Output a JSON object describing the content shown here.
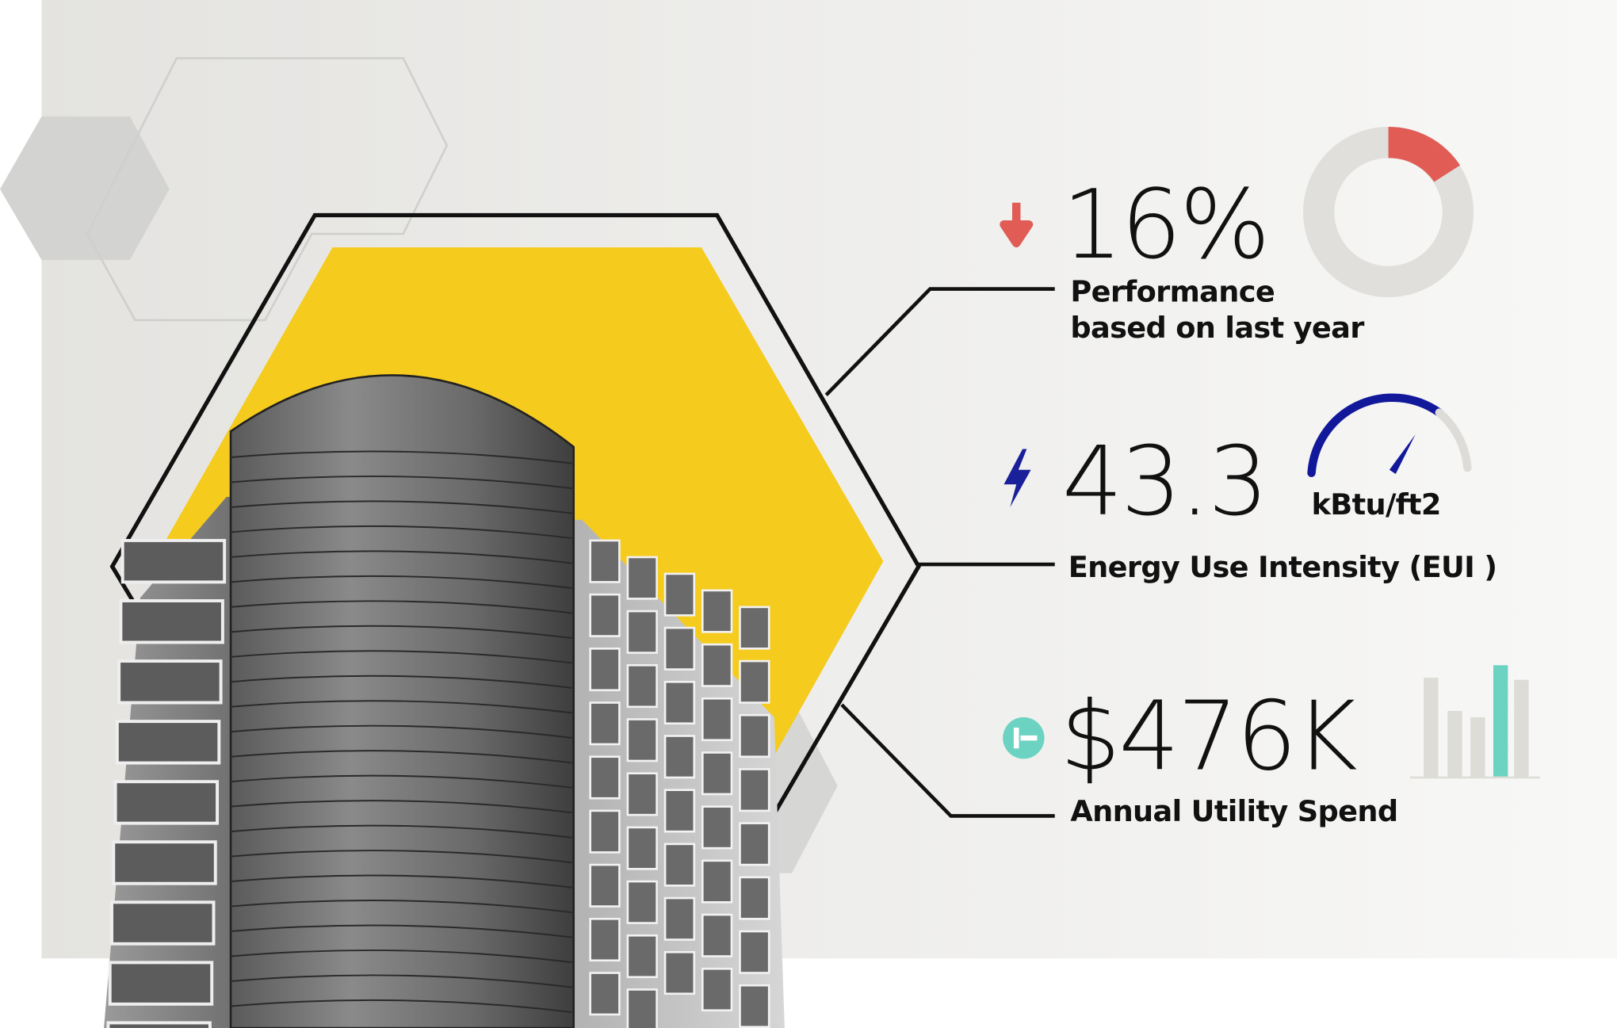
{
  "metrics": [
    {
      "value": "16%",
      "label_lines": [
        "Performance",
        "based on last year"
      ]
    },
    {
      "value": "43.3",
      "unit": "kBtu/ft2",
      "label": "Energy Use Intensity (EUI )"
    },
    {
      "value": "$476K",
      "label": "Annual Utility Spend"
    }
  ]
}
